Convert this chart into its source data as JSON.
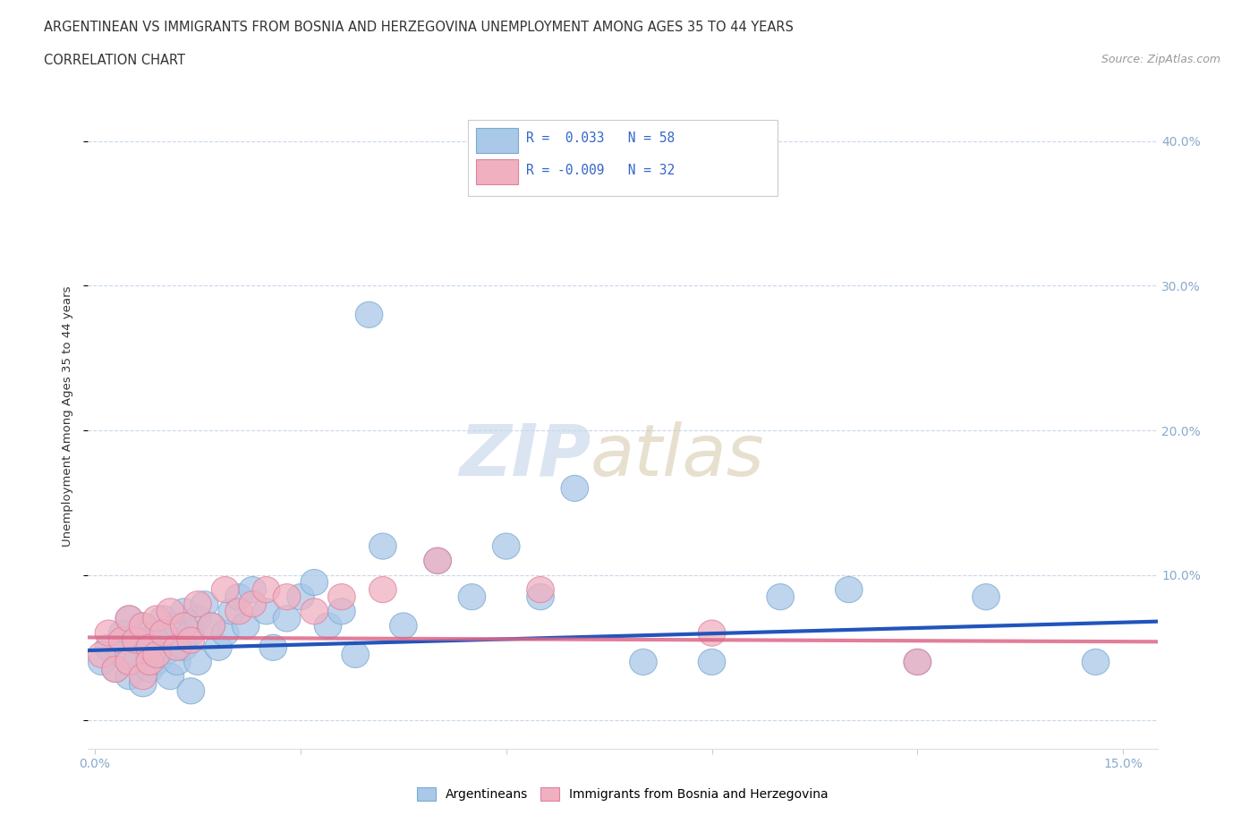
{
  "title_line1": "ARGENTINEAN VS IMMIGRANTS FROM BOSNIA AND HERZEGOVINA UNEMPLOYMENT AMONG AGES 35 TO 44 YEARS",
  "title_line2": "CORRELATION CHART",
  "source_text": "Source: ZipAtlas.com",
  "ylabel": "Unemployment Among Ages 35 to 44 years",
  "xlim": [
    -0.001,
    0.155
  ],
  "ylim": [
    -0.02,
    0.44
  ],
  "xticks": [
    0.0,
    0.03,
    0.06,
    0.09,
    0.12,
    0.15
  ],
  "xticklabels": [
    "0.0%",
    "",
    "",
    "",
    "",
    "15.0%"
  ],
  "yticks": [
    0.0,
    0.1,
    0.2,
    0.3,
    0.4
  ],
  "yticklabels_right": [
    "",
    "10.0%",
    "20.0%",
    "30.0%",
    "40.0%"
  ],
  "blue_R": 0.033,
  "blue_N": 58,
  "pink_R": -0.009,
  "pink_N": 32,
  "blue_color": "#aac8e8",
  "pink_color": "#f0b0c0",
  "blue_edge_color": "#7aaad0",
  "pink_edge_color": "#e080a0",
  "blue_line_color": "#2255bb",
  "pink_line_color": "#dd6688",
  "grid_color": "#c8d8e8",
  "tick_color": "#88aacc",
  "blue_scatter_x": [
    0.001,
    0.002,
    0.003,
    0.004,
    0.004,
    0.005,
    0.005,
    0.006,
    0.006,
    0.007,
    0.007,
    0.008,
    0.008,
    0.009,
    0.009,
    0.01,
    0.01,
    0.011,
    0.011,
    0.012,
    0.012,
    0.013,
    0.013,
    0.014,
    0.014,
    0.015,
    0.015,
    0.016,
    0.017,
    0.018,
    0.019,
    0.02,
    0.021,
    0.022,
    0.023,
    0.025,
    0.026,
    0.028,
    0.03,
    0.032,
    0.034,
    0.036,
    0.038,
    0.04,
    0.042,
    0.045,
    0.05,
    0.055,
    0.06,
    0.065,
    0.07,
    0.08,
    0.09,
    0.1,
    0.11,
    0.12,
    0.13,
    0.146
  ],
  "blue_scatter_y": [
    0.04,
    0.05,
    0.035,
    0.06,
    0.045,
    0.07,
    0.03,
    0.055,
    0.04,
    0.065,
    0.025,
    0.05,
    0.035,
    0.06,
    0.04,
    0.07,
    0.045,
    0.055,
    0.03,
    0.065,
    0.04,
    0.075,
    0.05,
    0.06,
    0.02,
    0.07,
    0.04,
    0.08,
    0.065,
    0.05,
    0.06,
    0.075,
    0.085,
    0.065,
    0.09,
    0.075,
    0.05,
    0.07,
    0.085,
    0.095,
    0.065,
    0.075,
    0.045,
    0.28,
    0.12,
    0.065,
    0.11,
    0.085,
    0.12,
    0.085,
    0.16,
    0.04,
    0.04,
    0.085,
    0.09,
    0.04,
    0.085,
    0.04
  ],
  "pink_scatter_x": [
    0.001,
    0.002,
    0.003,
    0.004,
    0.005,
    0.005,
    0.006,
    0.007,
    0.007,
    0.008,
    0.008,
    0.009,
    0.009,
    0.01,
    0.011,
    0.012,
    0.013,
    0.014,
    0.015,
    0.017,
    0.019,
    0.021,
    0.023,
    0.025,
    0.028,
    0.032,
    0.036,
    0.042,
    0.05,
    0.065,
    0.09,
    0.12
  ],
  "pink_scatter_y": [
    0.045,
    0.06,
    0.035,
    0.055,
    0.07,
    0.04,
    0.055,
    0.065,
    0.03,
    0.05,
    0.04,
    0.07,
    0.045,
    0.06,
    0.075,
    0.05,
    0.065,
    0.055,
    0.08,
    0.065,
    0.09,
    0.075,
    0.08,
    0.09,
    0.085,
    0.075,
    0.085,
    0.09,
    0.11,
    0.09,
    0.06,
    0.04
  ],
  "blue_trend_y0": 0.048,
  "blue_trend_y1": 0.068,
  "pink_trend_y0": 0.057,
  "pink_trend_y1": 0.054
}
